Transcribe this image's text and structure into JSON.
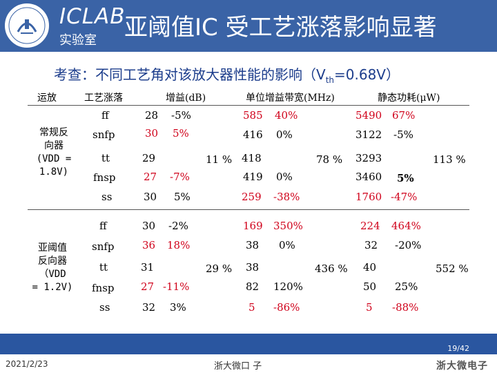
{
  "header": {
    "lab_name": "ICLAB",
    "lab_subname": "实验室",
    "title": "亚阈值IC 受工艺涨落影响显著",
    "logo_text": "浙江大学"
  },
  "subtitle": {
    "prefix": "考查：不同工艺角对该放大器性能的影响（V",
    "sub": "th",
    "suffix": "=0.68V）"
  },
  "columns": {
    "opamp": "运放",
    "corner": "工艺涨落",
    "gain": "增益(dB)",
    "gbw": "单位增益带宽(MHz)",
    "power": "静态功耗(μW)"
  },
  "groups": [
    {
      "label_lines": [
        "常规反",
        "向器",
        "(VDD =",
        "1.8V)"
      ],
      "gain_spread": "11 %",
      "gbw_spread": "78 %",
      "power_spread": "113 %",
      "rows": [
        {
          "corner": "ff",
          "gain": "28",
          "gain_pct": "-5%",
          "gbw": "585",
          "gbw_pct": "40%",
          "power": "5490",
          "power_pct": "67%"
        },
        {
          "corner": "snfp",
          "gain": "30",
          "gain_pct": "5%",
          "gbw": "416",
          "gbw_pct": "0%",
          "power": "3122",
          "power_pct": "-5%"
        },
        {
          "corner": "tt",
          "gain": "29",
          "gain_pct": "",
          "gbw": "418",
          "gbw_pct": "",
          "power": "3293",
          "power_pct": ""
        },
        {
          "corner": "fnsp",
          "gain": "27",
          "gain_pct": "-7%",
          "gbw": "419",
          "gbw_pct": "0%",
          "power": "3460",
          "power_pct": "5%"
        },
        {
          "corner": "ss",
          "gain": "30",
          "gain_pct": "5%",
          "gbw": "259",
          "gbw_pct": "-38%",
          "power": "1760",
          "power_pct": "-47%"
        }
      ]
    },
    {
      "label_lines": [
        "亚阈值",
        "反向器",
        "（VDD",
        "= 1.2V)"
      ],
      "gain_spread": "29 %",
      "gbw_spread": "436 %",
      "power_spread": "552 %",
      "rows": [
        {
          "corner": "ff",
          "gain": "30",
          "gain_pct": "-2%",
          "gbw": "169",
          "gbw_pct": "350%",
          "power": "224",
          "power_pct": "464%"
        },
        {
          "corner": "snfp",
          "gain": "36",
          "gain_pct": "18%",
          "gbw": "38",
          "gbw_pct": "0%",
          "power": "32",
          "power_pct": "-20%"
        },
        {
          "corner": "tt",
          "gain": "31",
          "gain_pct": "",
          "gbw": "38",
          "gbw_pct": "",
          "power": "40",
          "power_pct": ""
        },
        {
          "corner": "fnsp",
          "gain": "27",
          "gain_pct": "-11%",
          "gbw": "82",
          "gbw_pct": "120%",
          "power": "50",
          "power_pct": "25%"
        },
        {
          "corner": "ss",
          "gain": "32",
          "gain_pct": "3%",
          "gbw": "5",
          "gbw_pct": "-86%",
          "power": "5",
          "power_pct": "-88%"
        }
      ]
    }
  ],
  "footer": {
    "page": "19/42",
    "date": "2021/2/23",
    "org": "浙大微口 子",
    "brand": "浙大微电子"
  },
  "colors": {
    "header_bg": "#3a63a6",
    "footer_bar": "#2a56a0",
    "highlight": "#d0021b",
    "subtitle": "#1c3d8c"
  }
}
